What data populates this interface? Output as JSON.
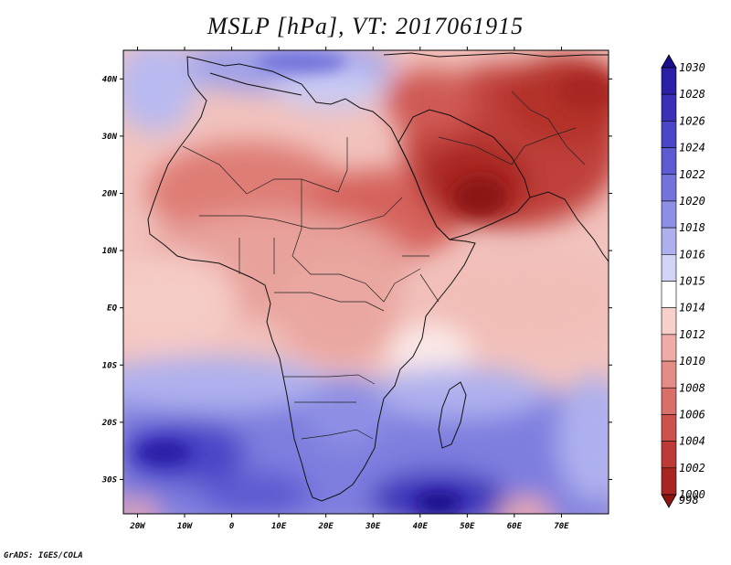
{
  "title": "MSLP [hPa], VT: 2017061915",
  "credit": "GrADS: IGES/COLA",
  "map": {
    "lat_labels": [
      "40N",
      "30N",
      "20N",
      "10N",
      "EQ",
      "10S",
      "20S",
      "30S"
    ],
    "lon_labels": [
      "20W",
      "10W",
      "0",
      "10E",
      "20E",
      "30E",
      "40E",
      "50E",
      "60E",
      "70E"
    ],
    "extent": {
      "lon_min": -23,
      "lon_max": 80,
      "lat_min": -36,
      "lat_max": 45
    }
  },
  "colorbar": {
    "levels": [
      "1030",
      "1028",
      "1026",
      "1024",
      "1022",
      "1020",
      "1018",
      "1016",
      "1015",
      "1014",
      "1012",
      "1010",
      "1008",
      "1006",
      "1004",
      "1002",
      "1000",
      "998"
    ],
    "colors": [
      "#1a0f8c",
      "#2b1fa6",
      "#3a30b8",
      "#4a44c6",
      "#5d5ad2",
      "#7373db",
      "#8e8fe4",
      "#aeb0ee",
      "#d2d3f7",
      "#ffffff",
      "#f7cfcb",
      "#efaba6",
      "#e48c86",
      "#d86f69",
      "#cc524d",
      "#bd3a36",
      "#a82622",
      "#8c1512"
    ]
  }
}
